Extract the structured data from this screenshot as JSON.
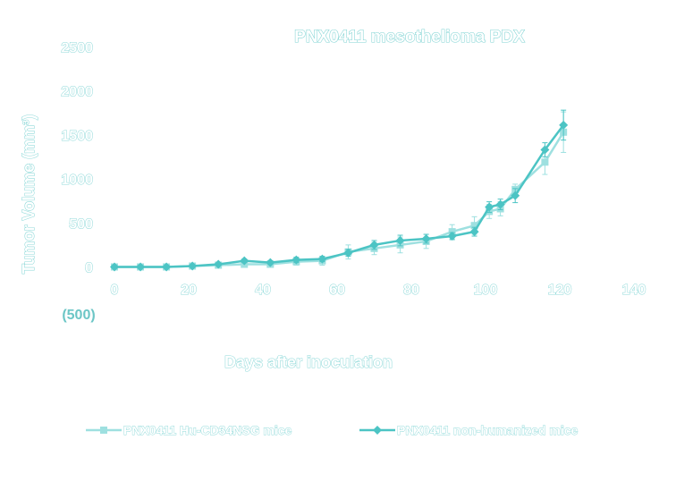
{
  "chart_data": {
    "type": "line",
    "title": "PNX0411 mesothelioma PDX",
    "xlabel": "Days after inoculation",
    "ylabel": "Tumor Volume (mm³)",
    "xlim": [
      0,
      140
    ],
    "ylim": [
      -500,
      2500
    ],
    "xticks": [
      "0",
      "20",
      "40",
      "60",
      "80",
      "100",
      "120",
      "140"
    ],
    "yticks": [
      "2500",
      "2000",
      "1500",
      "1000",
      "500",
      "0"
    ],
    "ytick_negative": "(500)",
    "grid": false,
    "legend_position": "bottom",
    "series": [
      {
        "name": "PNX0411 Hu-CD34NSG mice",
        "color": "#9ee0e0",
        "marker": "square",
        "x": [
          0,
          7,
          14,
          21,
          28,
          35,
          42,
          49,
          56,
          63,
          70,
          77,
          84,
          91,
          97,
          101,
          104,
          108,
          116,
          121
        ],
        "y": [
          0,
          0,
          0,
          10,
          20,
          30,
          30,
          60,
          70,
          170,
          210,
          250,
          290,
          400,
          470,
          630,
          660,
          880,
          1190,
          1530
        ],
        "err": [
          0,
          0,
          0,
          10,
          15,
          20,
          20,
          40,
          50,
          80,
          70,
          90,
          80,
          80,
          100,
          80,
          80,
          60,
          140,
          230
        ]
      },
      {
        "name": "PNX0411 non-humanized mice",
        "color": "#4cc4c4",
        "marker": "diamond",
        "x": [
          0,
          7,
          14,
          21,
          28,
          35,
          42,
          49,
          56,
          63,
          70,
          77,
          84,
          91,
          97,
          101,
          104,
          108,
          116,
          121
        ],
        "y": [
          0,
          0,
          0,
          10,
          30,
          70,
          50,
          80,
          90,
          160,
          250,
          300,
          320,
          350,
          400,
          680,
          710,
          810,
          1330,
          1610
        ],
        "err": [
          0,
          0,
          0,
          5,
          10,
          20,
          20,
          30,
          30,
          40,
          50,
          60,
          50,
          40,
          50,
          60,
          60,
          80,
          80,
          170
        ]
      }
    ]
  }
}
